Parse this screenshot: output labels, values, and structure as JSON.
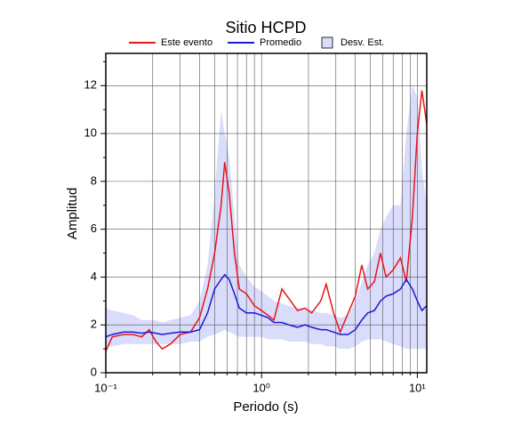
{
  "chart_data": {
    "type": "line",
    "title": "Sitio HCPD",
    "xlabel": "Periodo (s)",
    "ylabel": "Amplitud",
    "xscale": "log",
    "grid": true,
    "xlim": [
      0.1,
      11.5
    ],
    "ylim": [
      0,
      13.35
    ],
    "xticks": [
      {
        "value": 0.1,
        "label": "10⁻¹"
      },
      {
        "value": 1,
        "label": "10⁰"
      },
      {
        "value": 10,
        "label": "10¹"
      }
    ],
    "xminor": [
      0.2,
      0.3,
      0.4,
      0.5,
      0.6,
      0.7,
      0.8,
      0.9,
      2,
      3,
      4,
      5,
      6,
      7,
      8,
      9
    ],
    "yticks": [
      0,
      2,
      4,
      6,
      8,
      10,
      12
    ],
    "yminor": [
      1,
      3,
      5,
      7,
      9,
      11,
      13
    ],
    "x": [
      0.1,
      0.11,
      0.13,
      0.15,
      0.17,
      0.19,
      0.21,
      0.23,
      0.26,
      0.3,
      0.35,
      0.4,
      0.45,
      0.5,
      0.55,
      0.58,
      0.62,
      0.67,
      0.72,
      0.8,
      0.9,
      1.0,
      1.1,
      1.2,
      1.35,
      1.5,
      1.7,
      1.9,
      2.1,
      2.4,
      2.6,
      2.9,
      3.2,
      3.6,
      4.0,
      4.4,
      4.8,
      5.3,
      5.8,
      6.3,
      7.0,
      7.8,
      8.5,
      9.3,
      10.0,
      10.7,
      11.5
    ],
    "band": {
      "name": "Desv. Est.",
      "color": "#d9dcfa",
      "upper": [
        2.7,
        2.6,
        2.5,
        2.4,
        2.2,
        2.2,
        2.2,
        2.1,
        2.2,
        2.3,
        2.4,
        3.0,
        4.5,
        7.5,
        11.0,
        10.0,
        9.0,
        6.5,
        4.5,
        4.0,
        3.6,
        3.4,
        3.2,
        3.0,
        2.9,
        2.8,
        2.7,
        2.7,
        2.6,
        2.5,
        2.5,
        2.4,
        2.3,
        2.4,
        3.0,
        3.8,
        4.5,
        5.0,
        6.0,
        6.5,
        7.0,
        7.0,
        10.0,
        12.0,
        11.5,
        8.5,
        7.0
      ],
      "lower": [
        1.1,
        1.1,
        1.2,
        1.2,
        1.2,
        1.2,
        1.2,
        1.2,
        1.2,
        1.2,
        1.3,
        1.3,
        1.5,
        1.6,
        1.7,
        1.8,
        1.7,
        1.6,
        1.5,
        1.5,
        1.5,
        1.5,
        1.4,
        1.4,
        1.4,
        1.3,
        1.3,
        1.3,
        1.2,
        1.2,
        1.1,
        1.1,
        1.0,
        1.0,
        1.1,
        1.3,
        1.4,
        1.4,
        1.4,
        1.3,
        1.2,
        1.1,
        1.0,
        1.0,
        1.0,
        1.0,
        1.0
      ]
    },
    "series": [
      {
        "name": "Este evento",
        "color": "#e8141c",
        "values": [
          0.9,
          1.5,
          1.6,
          1.6,
          1.5,
          1.8,
          1.3,
          1.0,
          1.2,
          1.6,
          1.7,
          2.3,
          3.5,
          5.0,
          7.0,
          8.8,
          7.5,
          5.0,
          3.5,
          3.3,
          2.8,
          2.6,
          2.4,
          2.2,
          3.5,
          3.1,
          2.6,
          2.7,
          2.5,
          3.0,
          3.7,
          2.5,
          1.7,
          2.5,
          3.2,
          4.5,
          3.5,
          3.8,
          5.0,
          4.0,
          4.3,
          4.8,
          3.8,
          6.5,
          10.0,
          11.8,
          10.4
        ]
      },
      {
        "name": "Promedio",
        "color": "#1a1ad6",
        "values": [
          1.5,
          1.6,
          1.7,
          1.7,
          1.65,
          1.7,
          1.65,
          1.6,
          1.65,
          1.7,
          1.7,
          1.8,
          2.5,
          3.5,
          3.9,
          4.1,
          3.9,
          3.3,
          2.7,
          2.5,
          2.5,
          2.4,
          2.3,
          2.1,
          2.1,
          2.0,
          1.9,
          2.0,
          1.9,
          1.8,
          1.8,
          1.7,
          1.6,
          1.6,
          1.8,
          2.2,
          2.5,
          2.6,
          3.0,
          3.2,
          3.3,
          3.5,
          3.9,
          3.5,
          3.0,
          2.6,
          2.8
        ]
      }
    ]
  }
}
